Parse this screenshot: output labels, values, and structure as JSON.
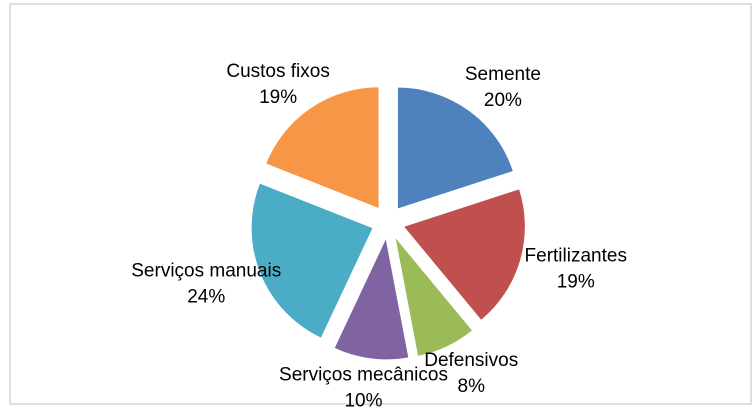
{
  "chart_data": {
    "type": "pie",
    "categories": [
      "Semente",
      "Fertilizantes",
      "Defensivos",
      "Serviços mecânicos",
      "Serviços manuais",
      "Custos fixos"
    ],
    "values": [
      20,
      19,
      8,
      10,
      24,
      19
    ],
    "value_labels": [
      "20%",
      "19%",
      "8%",
      "10%",
      "24%",
      "19%"
    ],
    "colors": [
      "#4f81bd",
      "#c0504d",
      "#9bbb59",
      "#8064a2",
      "#4bacc6",
      "#f79646"
    ]
  }
}
